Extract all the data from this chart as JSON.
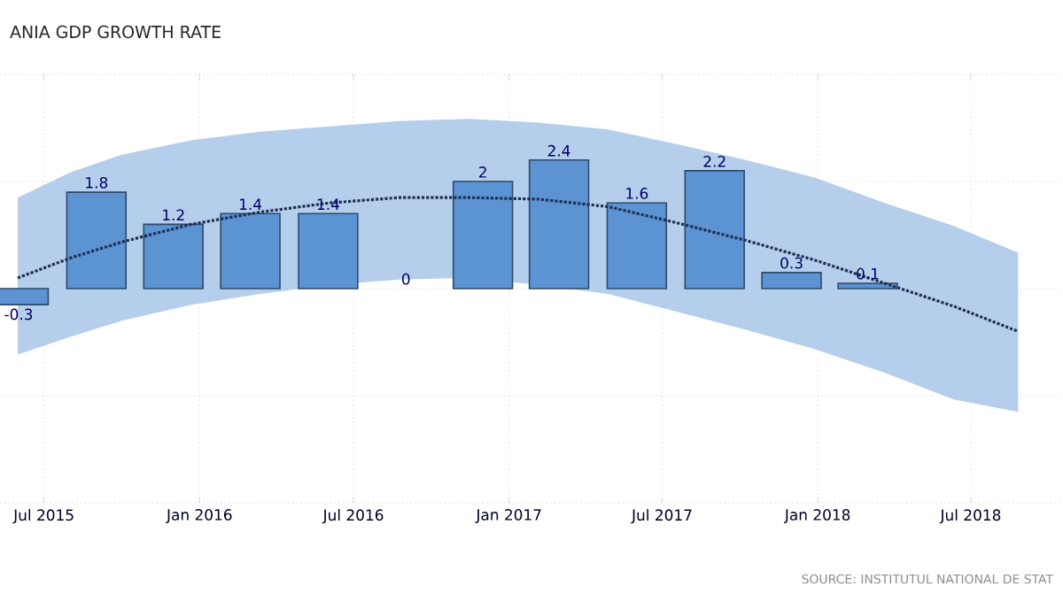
{
  "chart_data": {
    "type": "bar",
    "title": "ANIA GDP GROWTH RATE",
    "annotations": [
      "SOURCE: INSTITUTUL NATIONAL DE STAT"
    ],
    "x": [
      "2015-06-01",
      "2015-09-01",
      "2015-12-01",
      "2016-03-01",
      "2016-06-01",
      "2016-09-01",
      "2016-12-01",
      "2017-03-01",
      "2017-06-01",
      "2017-09-01",
      "2017-12-01",
      "2018-03-01"
    ],
    "series": [
      {
        "color": "#5b93d3",
        "values": [
          -0.3,
          1.8,
          1.2,
          1.4,
          1.4,
          0,
          2,
          2.4,
          1.6,
          2.2,
          0.3,
          0.1
        ],
        "value_labels": [
          "-0.3",
          "1.8",
          "1.2",
          "1.4",
          "1.4",
          "0",
          "2",
          "2.4",
          "1.6",
          "2.2",
          "0.3",
          "0.1"
        ]
      },
      {
        "type": "line",
        "color": "#1f2f4f",
        "line_style": "dotted",
        "x": [
          "2015-05-31",
          "2015-08-01",
          "2015-10-01",
          "2015-12-22",
          "2016-03-13",
          "2016-06-03",
          "2016-08-24",
          "2016-11-14",
          "2017-02-05",
          "2017-04-28",
          "2017-07-18",
          "2017-10-08",
          "2017-12-29",
          "2018-03-21",
          "2018-06-11",
          "2018-08-26"
        ],
        "values": [
          0.2,
          0.57,
          0.87,
          1.2,
          1.43,
          1.6,
          1.7,
          1.7,
          1.67,
          1.53,
          1.23,
          0.9,
          0.53,
          0.1,
          -0.33,
          -0.8
        ],
        "upper": [
          1.7,
          2.17,
          2.5,
          2.77,
          2.93,
          3.03,
          3.13,
          3.17,
          3.1,
          2.97,
          2.7,
          2.4,
          2.07,
          1.6,
          1.17,
          0.67
        ],
        "lower": [
          -1.23,
          -0.9,
          -0.6,
          -0.3,
          -0.1,
          0.07,
          0.17,
          0.2,
          0.07,
          -0.1,
          -0.43,
          -0.77,
          -1.13,
          -1.57,
          -2.07,
          -2.3
        ]
      }
    ],
    "xlim": [
      "2015-05-10",
      "2018-10-18"
    ],
    "xticks": [
      {
        "value": "2015-07-01",
        "label": "Jul 2015"
      },
      {
        "value": "2016-01-01",
        "label": "Jan 2016"
      },
      {
        "value": "2016-07-01",
        "label": "Jul 2016"
      },
      {
        "value": "2017-01-01",
        "label": "Jan 2017"
      },
      {
        "value": "2017-07-01",
        "label": "Jul 2017"
      },
      {
        "value": "2018-01-01",
        "label": "Jan 2018"
      },
      {
        "value": "2018-07-01",
        "label": "Jul 2018"
      }
    ],
    "ylim": [
      -4,
      4
    ],
    "yticks": [
      {
        "value": -4,
        "label": null
      },
      {
        "value": -2,
        "label": null
      },
      {
        "value": 0,
        "label": null
      },
      {
        "value": 2,
        "label": null
      },
      {
        "value": 4,
        "label": null
      }
    ],
    "tick_labels": "x",
    "grid": true
  }
}
